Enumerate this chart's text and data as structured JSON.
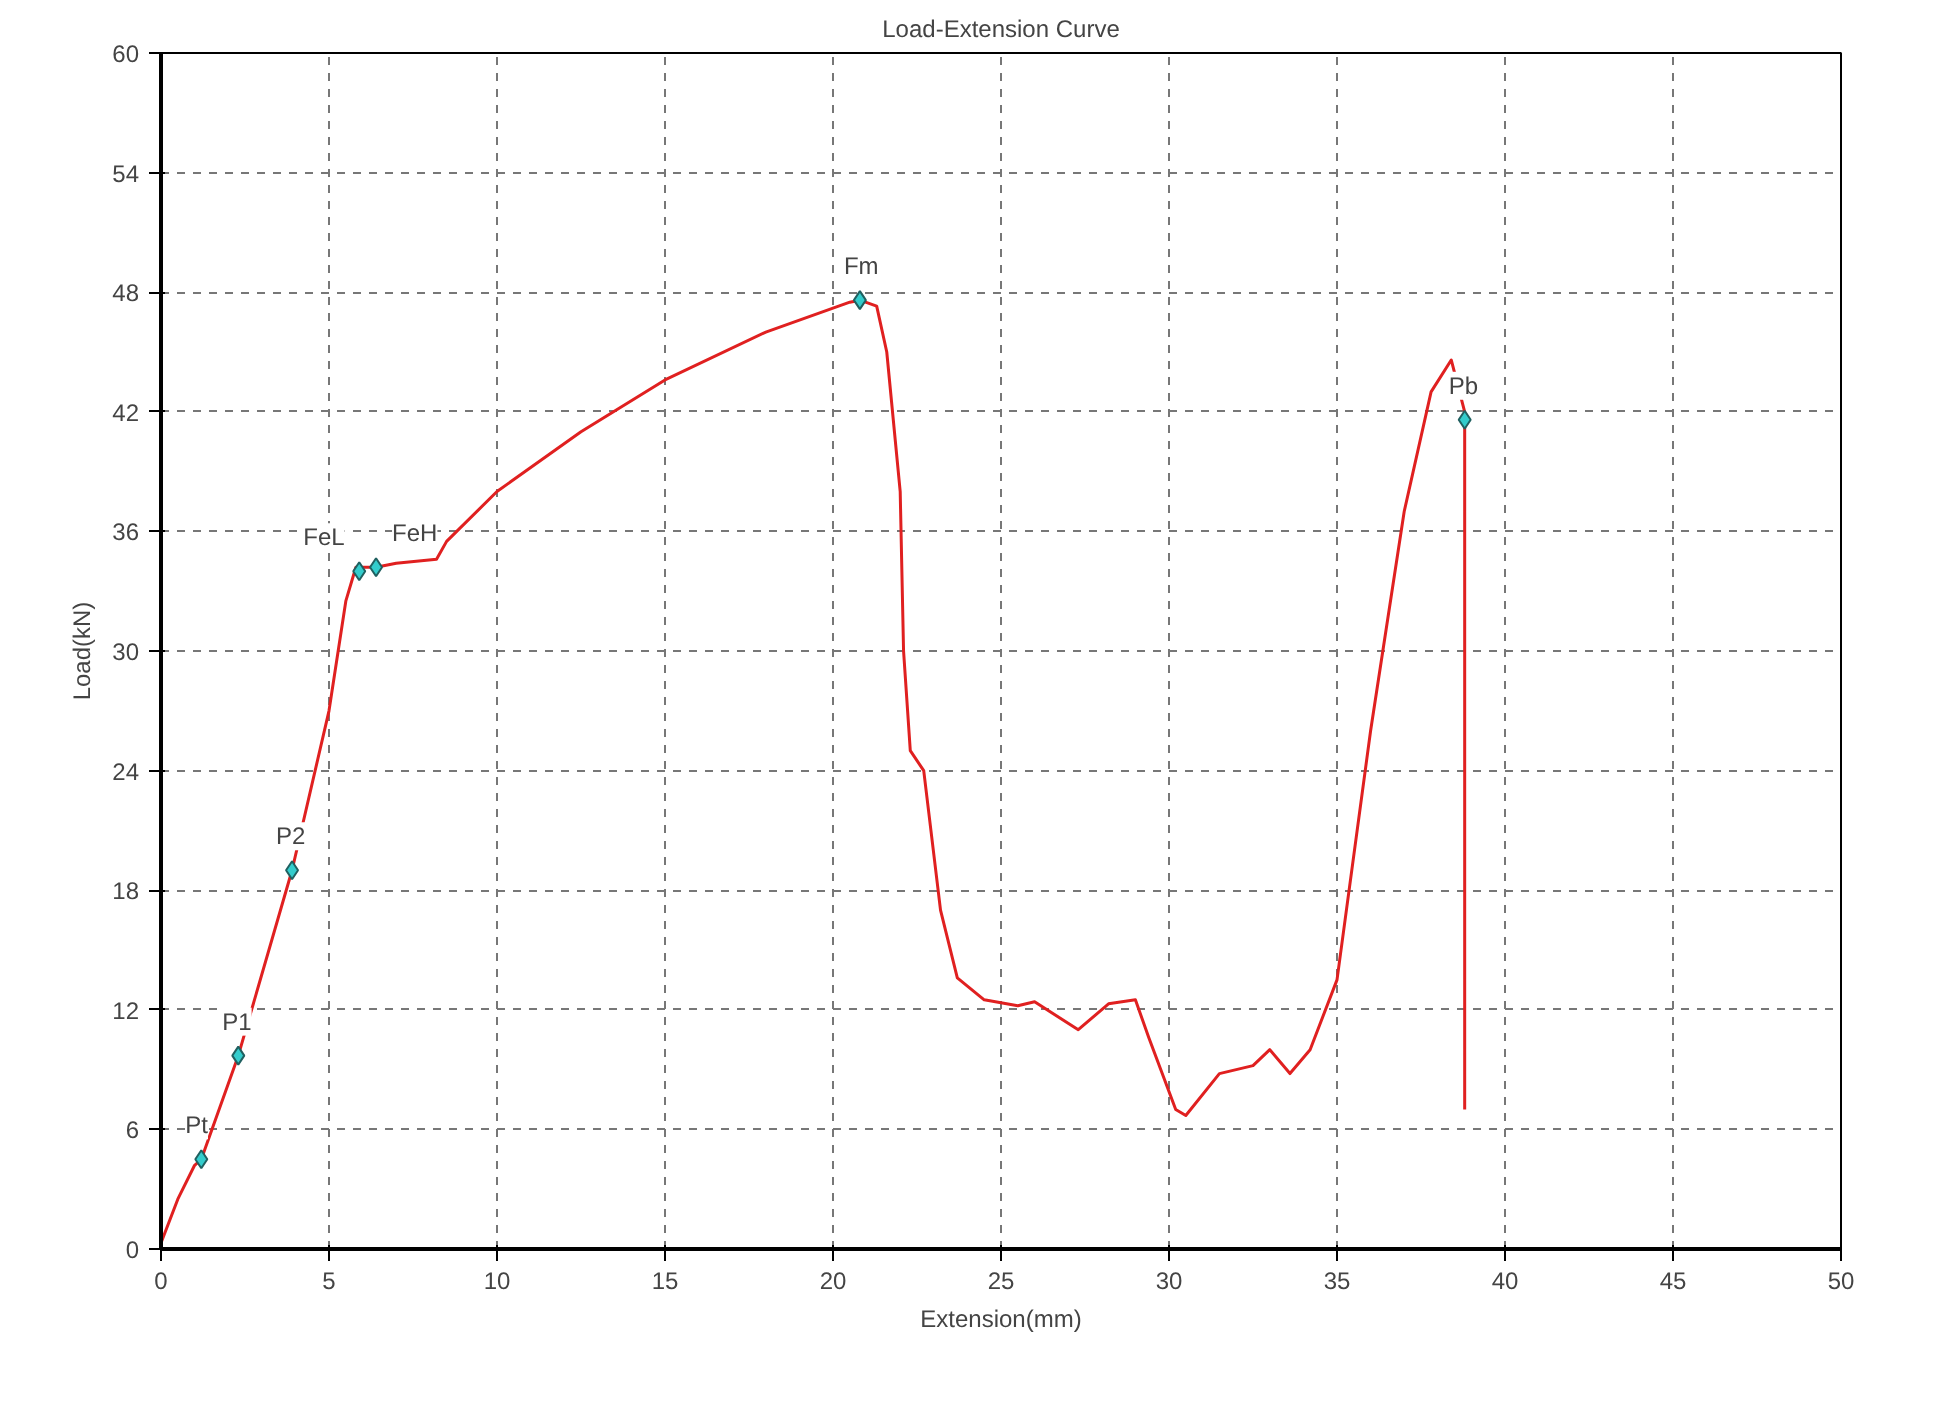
{
  "chart_data": {
    "type": "line",
    "title": "Load-Extension Curve",
    "xlabel": "Extension(mm)",
    "ylabel": "Load(kN)",
    "xlim": [
      0,
      50
    ],
    "ylim": [
      0,
      60
    ],
    "xticks": [
      0,
      5,
      10,
      15,
      20,
      25,
      30,
      35,
      40,
      45,
      50
    ],
    "yticks": [
      0,
      6,
      12,
      18,
      24,
      30,
      36,
      42,
      48,
      54,
      60
    ],
    "grid": true,
    "series": [
      {
        "color": "#e02020",
        "marker": "none",
        "x": [
          0,
          0.5,
          1,
          1.2,
          2.3,
          3.9,
          5,
          5.5,
          5.8,
          6.4,
          7,
          8.2,
          8.5,
          10,
          12.5,
          15,
          18,
          20.5,
          20.8,
          21.3,
          21.6,
          22,
          22.1,
          22.3,
          22.7,
          23.2,
          23.7,
          24.5,
          25.5,
          26,
          27.3,
          28.2,
          29,
          29.4,
          30.2,
          30.5,
          31.5,
          32.5,
          33,
          33.6,
          34.2,
          35,
          36,
          37,
          37.8,
          38.4,
          38.8,
          38.8
        ],
        "values": [
          0.3,
          2.5,
          4.2,
          4.5,
          9.7,
          19,
          27,
          32.5,
          34.2,
          34.2,
          34.4,
          34.6,
          35.5,
          38,
          41,
          43.6,
          46,
          47.5,
          47.6,
          47.3,
          45,
          38,
          30,
          25,
          24,
          17,
          13.6,
          12.5,
          12.2,
          12.4,
          11,
          12.3,
          12.5,
          10.6,
          7,
          6.7,
          8.8,
          9.2,
          10,
          8.8,
          10,
          13.5,
          26,
          37,
          43,
          44.6,
          42,
          7
        ]
      },
      {
        "type": "scatter",
        "color": "#33cccc",
        "marker": "diamond",
        "x": [
          1.2,
          2.3,
          3.9,
          5.9,
          6.4,
          20.8,
          38.8
        ],
        "values": [
          4.5,
          9.7,
          19,
          34.0,
          34.2,
          47.6,
          41.6
        ]
      }
    ],
    "annotations": [
      {
        "text": "Pt",
        "x": 1.2,
        "y": 4.5
      },
      {
        "text": "P1",
        "x": 2.3,
        "y": 9.7
      },
      {
        "text": "P2",
        "x": 3.9,
        "y": 19
      },
      {
        "text": "FeL",
        "x": 5.9,
        "y": 34.0
      },
      {
        "text": "FeH",
        "x": 6.4,
        "y": 34.2
      },
      {
        "text": "Fm",
        "x": 20.8,
        "y": 47.6
      },
      {
        "text": "Pb",
        "x": 38.8,
        "y": 41.6
      }
    ]
  }
}
